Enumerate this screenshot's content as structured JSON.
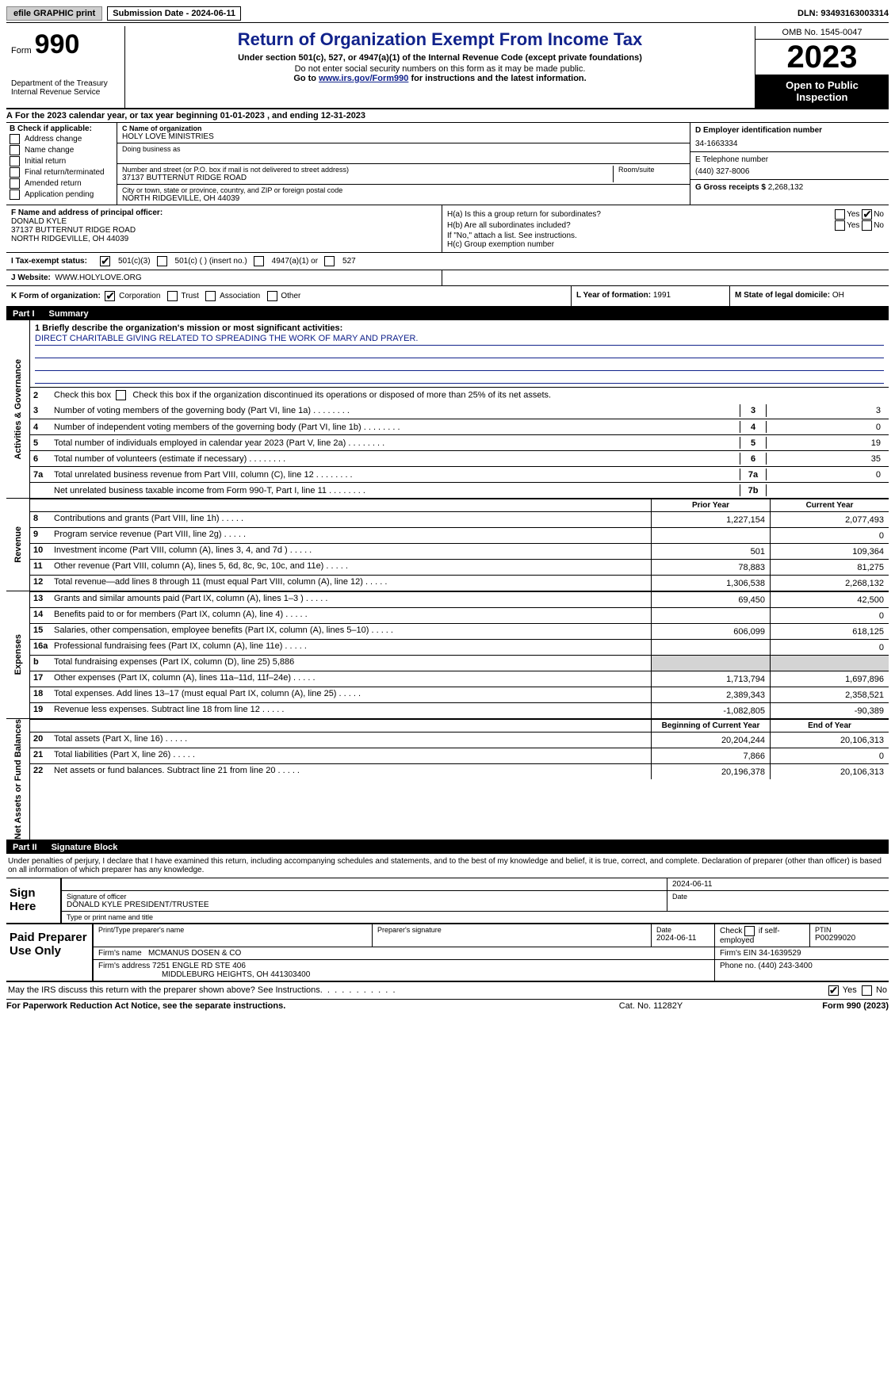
{
  "topbar": {
    "efile": "efile GRAPHIC print",
    "submission": "Submission Date - 2024-06-11",
    "dln": "DLN: 93493163003314"
  },
  "header": {
    "form_word": "Form",
    "form_number": "990",
    "dept": "Department of the Treasury",
    "irs": "Internal Revenue Service",
    "title": "Return of Organization Exempt From Income Tax",
    "subtitle": "Under section 501(c), 527, or 4947(a)(1) of the Internal Revenue Code (except private foundations)",
    "ssn_note": "Do not enter social security numbers on this form as it may be made public.",
    "goto_pre": "Go to ",
    "goto_link": "www.irs.gov/Form990",
    "goto_post": " for instructions and the latest information.",
    "omb": "OMB No. 1545-0047",
    "year": "2023",
    "public": "Open to Public Inspection"
  },
  "line_a": "For the 2023 calendar year, or tax year beginning 01-01-2023   , and ending 12-31-2023",
  "box_b": {
    "header": "B Check if applicable:",
    "items": [
      "Address change",
      "Name change",
      "Initial return",
      "Final return/terminated",
      "Amended return",
      "Application pending"
    ]
  },
  "box_c": {
    "name_lbl": "C Name of organization",
    "name": "HOLY LOVE MINISTRIES",
    "dba_lbl": "Doing business as",
    "street_lbl": "Number and street (or P.O. box if mail is not delivered to street address)",
    "street": "37137 BUTTERNUT RIDGE ROAD",
    "room_lbl": "Room/suite",
    "city_lbl": "City or town, state or province, country, and ZIP or foreign postal code",
    "city": "NORTH RIDGEVILLE, OH  44039"
  },
  "box_d": {
    "lbl": "D Employer identification number",
    "val": "34-1663334"
  },
  "box_e": {
    "lbl": "E Telephone number",
    "val": "(440) 327-8006"
  },
  "box_g": {
    "lbl": "G Gross receipts $",
    "val": "2,268,132"
  },
  "box_f": {
    "lbl": "F  Name and address of principal officer:",
    "name": "DONALD KYLE",
    "addr1": "37137 BUTTERNUT RIDGE ROAD",
    "addr2": "NORTH RIDGEVILLE, OH  44039"
  },
  "box_h": {
    "a": "H(a)  Is this a group return for subordinates?",
    "b": "H(b)  Are all subordinates included?",
    "note": "If \"No,\" attach a list. See instructions.",
    "c": "H(c)  Group exemption number",
    "yes": "Yes",
    "no": "No"
  },
  "row_i": {
    "lbl": "I   Tax-exempt status:",
    "o1": "501(c)(3)",
    "o2": "501(c) (  ) (insert no.)",
    "o3": "4947(a)(1) or",
    "o4": "527"
  },
  "row_j": {
    "lbl": "J   Website:",
    "val": "WWW.HOLYLOVE.ORG"
  },
  "row_k": {
    "lbl": "K Form of organization:",
    "o1": "Corporation",
    "o2": "Trust",
    "o3": "Association",
    "o4": "Other"
  },
  "row_l": {
    "lbl": "L Year of formation:",
    "val": "1991"
  },
  "row_m": {
    "lbl": "M State of legal domicile:",
    "val": "OH"
  },
  "part1": {
    "num": "Part I",
    "title": "Summary"
  },
  "side_labels": {
    "ag": "Activities & Governance",
    "rev": "Revenue",
    "exp": "Expenses",
    "na": "Net Assets or Fund Balances"
  },
  "mission_lbl": "1   Briefly describe the organization's mission or most significant activities:",
  "mission": "DIRECT CHARITABLE GIVING RELATED TO SPREADING THE WORK OF MARY AND PRAYER.",
  "line2_text": "Check this box          if the organization discontinued its operations or disposed of more than 25% of its net assets.",
  "govlines": [
    {
      "n": "3",
      "d": "Number of voting members of the governing body (Part VI, line 1a)",
      "b": "3",
      "v": "3"
    },
    {
      "n": "4",
      "d": "Number of independent voting members of the governing body (Part VI, line 1b)",
      "b": "4",
      "v": "0"
    },
    {
      "n": "5",
      "d": "Total number of individuals employed in calendar year 2023 (Part V, line 2a)",
      "b": "5",
      "v": "19"
    },
    {
      "n": "6",
      "d": "Total number of volunteers (estimate if necessary)",
      "b": "6",
      "v": "35"
    },
    {
      "n": "7a",
      "d": "Total unrelated business revenue from Part VIII, column (C), line 12",
      "b": "7a",
      "v": "0"
    },
    {
      "n": "",
      "d": "Net unrelated business taxable income from Form 990-T, Part I, line 11",
      "b": "7b",
      "v": ""
    }
  ],
  "col_hdrs": {
    "prior": "Prior Year",
    "current": "Current Year",
    "beg": "Beginning of Current Year",
    "end": "End of Year"
  },
  "revlines": [
    {
      "n": "8",
      "d": "Contributions and grants (Part VIII, line 1h)",
      "p": "1,227,154",
      "c": "2,077,493"
    },
    {
      "n": "9",
      "d": "Program service revenue (Part VIII, line 2g)",
      "p": "",
      "c": "0"
    },
    {
      "n": "10",
      "d": "Investment income (Part VIII, column (A), lines 3, 4, and 7d )",
      "p": "501",
      "c": "109,364"
    },
    {
      "n": "11",
      "d": "Other revenue (Part VIII, column (A), lines 5, 6d, 8c, 9c, 10c, and 11e)",
      "p": "78,883",
      "c": "81,275"
    },
    {
      "n": "12",
      "d": "Total revenue—add lines 8 through 11 (must equal Part VIII, column (A), line 12)",
      "p": "1,306,538",
      "c": "2,268,132"
    }
  ],
  "explines": [
    {
      "n": "13",
      "d": "Grants and similar amounts paid (Part IX, column (A), lines 1–3 )",
      "p": "69,450",
      "c": "42,500"
    },
    {
      "n": "14",
      "d": "Benefits paid to or for members (Part IX, column (A), line 4)",
      "p": "",
      "c": "0"
    },
    {
      "n": "15",
      "d": "Salaries, other compensation, employee benefits (Part IX, column (A), lines 5–10)",
      "p": "606,099",
      "c": "618,125"
    },
    {
      "n": "16a",
      "d": "Professional fundraising fees (Part IX, column (A), line 11e)",
      "p": "",
      "c": "0"
    },
    {
      "n": "b",
      "d": "Total fundraising expenses (Part IX, column (D), line 25) 5,886",
      "p": "shade",
      "c": "shade"
    },
    {
      "n": "17",
      "d": "Other expenses (Part IX, column (A), lines 11a–11d, 11f–24e)",
      "p": "1,713,794",
      "c": "1,697,896"
    },
    {
      "n": "18",
      "d": "Total expenses. Add lines 13–17 (must equal Part IX, column (A), line 25)",
      "p": "2,389,343",
      "c": "2,358,521"
    },
    {
      "n": "19",
      "d": "Revenue less expenses. Subtract line 18 from line 12",
      "p": "-1,082,805",
      "c": "-90,389"
    }
  ],
  "nalines": [
    {
      "n": "20",
      "d": "Total assets (Part X, line 16)",
      "p": "20,204,244",
      "c": "20,106,313"
    },
    {
      "n": "21",
      "d": "Total liabilities (Part X, line 26)",
      "p": "7,866",
      "c": "0"
    },
    {
      "n": "22",
      "d": "Net assets or fund balances. Subtract line 21 from line 20",
      "p": "20,196,378",
      "c": "20,106,313"
    }
  ],
  "part2": {
    "num": "Part II",
    "title": "Signature Block"
  },
  "sig_text": "Under penalties of perjury, I declare that I have examined this return, including accompanying schedules and statements, and to the best of my knowledge and belief, it is true, correct, and complete. Declaration of preparer (other than officer) is based on all information of which preparer has any knowledge.",
  "sign": {
    "here": "Sign Here",
    "date": "2024-06-11",
    "sig_lbl": "Signature of officer",
    "officer": "DONALD KYLE  PRESIDENT/TRUSTEE",
    "type_lbl": "Type or print name and title",
    "date_lbl": "Date"
  },
  "paid": {
    "title": "Paid Preparer Use Only",
    "name_lbl": "Print/Type preparer's name",
    "sig_lbl": "Preparer's signature",
    "date_lbl": "Date",
    "date": "2024-06-11",
    "check_lbl": "Check         if self-employed",
    "ptin_lbl": "PTIN",
    "ptin": "P00299020",
    "firm_name_lbl": "Firm's name",
    "firm_name": "MCMANUS DOSEN & CO",
    "firm_ein_lbl": "Firm's EIN",
    "firm_ein": "34-1639529",
    "firm_addr_lbl": "Firm's address",
    "firm_addr1": "7251 ENGLE RD STE 406",
    "firm_addr2": "MIDDLEBURG HEIGHTS, OH  441303400",
    "phone_lbl": "Phone no.",
    "phone": "(440) 243-3400"
  },
  "discuss": {
    "text": "May the IRS discuss this return with the preparer shown above? See Instructions.",
    "yes": "Yes",
    "no": "No"
  },
  "footer": {
    "pra": "For Paperwork Reduction Act Notice, see the separate instructions.",
    "cat": "Cat. No. 11282Y",
    "form": "Form 990 (2023)"
  }
}
